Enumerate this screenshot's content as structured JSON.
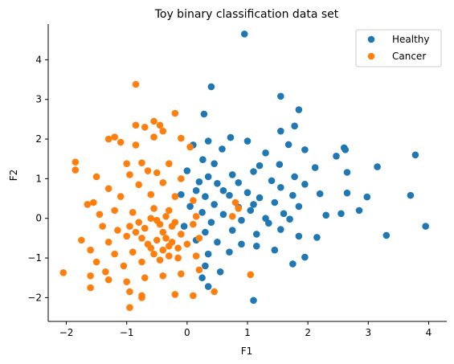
{
  "chart_data": {
    "type": "scatter",
    "title": "Toy binary classification data set",
    "xlabel": "F1",
    "ylabel": "F2",
    "xlim": [
      -2.3,
      4.3
    ],
    "ylim": [
      -2.6,
      4.9
    ],
    "xticks": [
      -2,
      -1,
      0,
      1,
      2,
      3,
      4
    ],
    "yticks": [
      -2,
      -1,
      0,
      1,
      2,
      3,
      4
    ],
    "grid": false,
    "legend_position": "top-right",
    "series": [
      {
        "name": "Healthy",
        "color": "#1f77b4",
        "points": [
          [
            0.95,
            4.65
          ],
          [
            0.4,
            3.32
          ],
          [
            1.55,
            3.08
          ],
          [
            0.28,
            2.63
          ],
          [
            1.85,
            2.74
          ],
          [
            1.55,
            2.2
          ],
          [
            1.78,
            2.33
          ],
          [
            0.72,
            2.04
          ],
          [
            1.95,
            1.73
          ],
          [
            1.0,
            1.95
          ],
          [
            0.1,
            1.85
          ],
          [
            0.35,
            1.95
          ],
          [
            1.3,
            1.65
          ],
          [
            1.68,
            1.86
          ],
          [
            0.58,
            1.75
          ],
          [
            2.6,
            1.78
          ],
          [
            2.62,
            1.73
          ],
          [
            3.78,
            1.6
          ],
          [
            2.47,
            1.57
          ],
          [
            0.26,
            1.48
          ],
          [
            0.45,
            1.38
          ],
          [
            1.2,
            1.33
          ],
          [
            1.53,
            1.36
          ],
          [
            2.12,
            1.28
          ],
          [
            3.15,
            1.3
          ],
          [
            0.35,
            1.05
          ],
          [
            0.75,
            1.1
          ],
          [
            1.1,
            1.18
          ],
          [
            1.78,
            1.05
          ],
          [
            2.65,
            1.16
          ],
          [
            0.2,
            0.92
          ],
          [
            0.5,
            0.88
          ],
          [
            0.85,
            0.9
          ],
          [
            1.4,
            0.95
          ],
          [
            1.95,
            0.86
          ],
          [
            0.6,
            0.7
          ],
          [
            1.0,
            0.65
          ],
          [
            1.55,
            0.78
          ],
          [
            2.2,
            0.62
          ],
          [
            2.65,
            0.64
          ],
          [
            0.3,
            0.55
          ],
          [
            0.7,
            0.58
          ],
          [
            1.2,
            0.52
          ],
          [
            1.75,
            0.58
          ],
          [
            2.98,
            0.54
          ],
          [
            3.7,
            0.58
          ],
          [
            0.45,
            0.35
          ],
          [
            0.85,
            0.28
          ],
          [
            1.1,
            0.35
          ],
          [
            1.45,
            0.4
          ],
          [
            1.85,
            0.3
          ],
          [
            2.85,
            0.2
          ],
          [
            0.25,
            0.15
          ],
          [
            0.6,
            0.1
          ],
          [
            1.05,
            0.2
          ],
          [
            1.6,
            0.12
          ],
          [
            2.3,
            0.08
          ],
          [
            2.55,
            0.12
          ],
          [
            0.4,
            -0.1
          ],
          [
            0.9,
            -0.05
          ],
          [
            1.35,
            -0.12
          ],
          [
            1.7,
            -0.02
          ],
          [
            3.95,
            -0.2
          ],
          [
            0.3,
            -0.35
          ],
          [
            0.75,
            -0.3
          ],
          [
            1.15,
            -0.4
          ],
          [
            1.55,
            -0.28
          ],
          [
            1.85,
            -0.45
          ],
          [
            3.3,
            -0.43
          ],
          [
            2.15,
            -0.48
          ],
          [
            0.5,
            -0.6
          ],
          [
            0.9,
            -0.65
          ],
          [
            1.15,
            -0.7
          ],
          [
            1.45,
            -0.8
          ],
          [
            0.35,
            -0.9
          ],
          [
            0.7,
            -0.85
          ],
          [
            1.95,
            -0.98
          ],
          [
            1.75,
            -1.15
          ],
          [
            0.3,
            -1.2
          ],
          [
            0.55,
            -1.35
          ],
          [
            0.25,
            -1.5
          ],
          [
            0.35,
            -1.72
          ],
          [
            1.1,
            -2.07
          ],
          [
            0.15,
            -0.55
          ],
          [
            0.05,
            0.3
          ],
          [
            -0.1,
            0.6
          ],
          [
            0.0,
            1.2
          ],
          [
            0.15,
            0.7
          ],
          [
            -0.05,
            -0.2
          ],
          [
            1.3,
            0.0
          ]
        ]
      },
      {
        "name": "Cancer",
        "color": "#ff7f0e",
        "points": [
          [
            -0.85,
            3.38
          ],
          [
            -0.2,
            2.65
          ],
          [
            -0.55,
            2.45
          ],
          [
            -0.85,
            2.35
          ],
          [
            -0.45,
            2.35
          ],
          [
            -0.7,
            2.3
          ],
          [
            -0.4,
            2.2
          ],
          [
            -1.3,
            2.0
          ],
          [
            -0.1,
            2.02
          ],
          [
            -1.2,
            2.05
          ],
          [
            -1.1,
            1.92
          ],
          [
            -0.85,
            1.85
          ],
          [
            -0.55,
            2.05
          ],
          [
            0.05,
            1.8
          ],
          [
            -1.85,
            1.42
          ],
          [
            -1.85,
            1.22
          ],
          [
            -1.0,
            1.38
          ],
          [
            -0.75,
            1.4
          ],
          [
            -0.3,
            1.38
          ],
          [
            -0.65,
            1.2
          ],
          [
            -1.5,
            1.05
          ],
          [
            -0.95,
            1.1
          ],
          [
            -0.5,
            1.15
          ],
          [
            -0.1,
            1.0
          ],
          [
            -1.3,
            0.75
          ],
          [
            -0.8,
            0.85
          ],
          [
            -0.4,
            0.9
          ],
          [
            -1.65,
            0.35
          ],
          [
            -1.55,
            0.4
          ],
          [
            -1.1,
            0.55
          ],
          [
            -0.6,
            0.6
          ],
          [
            -0.2,
            0.55
          ],
          [
            0.1,
            0.45
          ],
          [
            -1.45,
            0.1
          ],
          [
            -1.2,
            0.2
          ],
          [
            -0.9,
            0.15
          ],
          [
            -0.55,
            0.25
          ],
          [
            -0.3,
            0.2
          ],
          [
            0.15,
            0.05
          ],
          [
            0.75,
            0.05
          ],
          [
            -1.75,
            -0.55
          ],
          [
            -1.4,
            -0.2
          ],
          [
            -1.15,
            -0.3
          ],
          [
            -0.8,
            -0.1
          ],
          [
            -0.5,
            -0.05
          ],
          [
            -0.2,
            -0.1
          ],
          [
            0.1,
            -0.15
          ],
          [
            -1.6,
            -0.8
          ],
          [
            -1.3,
            -0.6
          ],
          [
            -1.0,
            -0.45
          ],
          [
            -0.75,
            -0.5
          ],
          [
            -0.4,
            -0.35
          ],
          [
            -0.1,
            -0.4
          ],
          [
            0.2,
            -0.5
          ],
          [
            -1.5,
            -1.1
          ],
          [
            -1.2,
            -0.9
          ],
          [
            -0.9,
            -0.85
          ],
          [
            -0.6,
            -0.75
          ],
          [
            -0.3,
            -0.7
          ],
          [
            0.0,
            -0.65
          ],
          [
            -1.35,
            -1.35
          ],
          [
            -1.05,
            -1.2
          ],
          [
            -0.75,
            -1.1
          ],
          [
            -0.45,
            -1.05
          ],
          [
            -0.15,
            -1.0
          ],
          [
            0.15,
            -0.95
          ],
          [
            -2.05,
            -1.37
          ],
          [
            -1.6,
            -1.45
          ],
          [
            -1.3,
            -1.55
          ],
          [
            -1.0,
            -1.6
          ],
          [
            -0.7,
            -1.5
          ],
          [
            -0.4,
            -1.45
          ],
          [
            -0.1,
            -1.4
          ],
          [
            0.2,
            -1.3
          ],
          [
            -1.6,
            -1.75
          ],
          [
            -0.95,
            -1.85
          ],
          [
            -0.75,
            -1.95
          ],
          [
            -0.2,
            -1.92
          ],
          [
            0.1,
            -1.95
          ],
          [
            0.45,
            -1.85
          ],
          [
            -0.95,
            -2.25
          ],
          [
            -0.75,
            -2.0
          ],
          [
            1.05,
            -1.42
          ],
          [
            0.8,
            0.4
          ],
          [
            0.85,
            0.25
          ],
          [
            -0.35,
            0.05
          ],
          [
            -0.25,
            -0.2
          ],
          [
            -0.45,
            -0.15
          ],
          [
            -0.6,
            0.0
          ],
          [
            -0.7,
            -0.25
          ],
          [
            -0.35,
            -0.5
          ],
          [
            -0.5,
            -0.55
          ],
          [
            -0.65,
            -0.65
          ],
          [
            -0.25,
            -0.6
          ],
          [
            -0.4,
            -0.8
          ],
          [
            -0.55,
            -0.9
          ],
          [
            -0.3,
            -0.95
          ],
          [
            -0.15,
            -0.75
          ],
          [
            -0.85,
            -0.35
          ],
          [
            -0.95,
            -0.2
          ]
        ]
      }
    ]
  }
}
